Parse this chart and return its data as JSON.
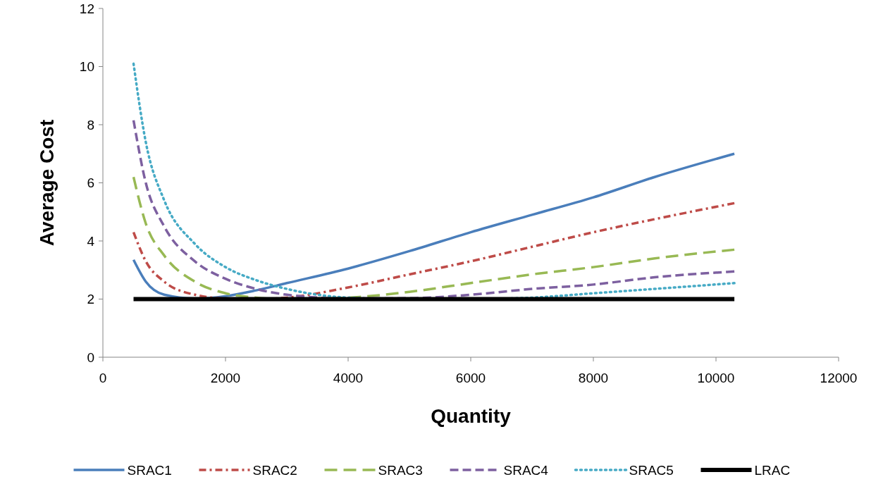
{
  "chart_data": {
    "type": "line",
    "xlabel": "Quantity",
    "ylabel": "Average Cost",
    "xlim": [
      0,
      12000
    ],
    "xticks": [
      0,
      2000,
      4000,
      6000,
      8000,
      10000,
      12000
    ],
    "ylim": [
      0,
      12
    ],
    "yticks": [
      0,
      2,
      4,
      6,
      8,
      10,
      12
    ],
    "legend": "bottom",
    "marker": "none",
    "series": [
      {
        "name": "SRAC1",
        "color": "#4a7ebb",
        "line_style": "solid",
        "x": [
          500,
          700,
          1000,
          1500,
          2000,
          2500,
          3000,
          4000,
          5000,
          6000,
          7000,
          8000,
          9000,
          10300
        ],
        "values": [
          3.35,
          2.6,
          2.15,
          2.02,
          2.1,
          2.3,
          2.55,
          3.05,
          3.65,
          4.3,
          4.9,
          5.5,
          6.2,
          7.0
        ]
      },
      {
        "name": "SRAC2",
        "color": "#be4b48",
        "line_style": "dashdot",
        "x": [
          500,
          700,
          1000,
          1500,
          2000,
          2500,
          3000,
          4000,
          5000,
          6000,
          7000,
          8000,
          9000,
          10300
        ],
        "values": [
          4.3,
          3.3,
          2.6,
          2.15,
          2.02,
          2.0,
          2.05,
          2.4,
          2.85,
          3.3,
          3.8,
          4.3,
          4.75,
          5.3
        ]
      },
      {
        "name": "SRAC3",
        "color": "#98b954",
        "line_style": "longdash",
        "x": [
          500,
          700,
          1000,
          1500,
          2000,
          2500,
          3000,
          4000,
          5000,
          6000,
          7000,
          8000,
          9000,
          10300
        ],
        "values": [
          6.2,
          4.6,
          3.5,
          2.6,
          2.2,
          2.05,
          2.0,
          2.05,
          2.25,
          2.55,
          2.85,
          3.1,
          3.4,
          3.7
        ]
      },
      {
        "name": "SRAC4",
        "color": "#7d60a0",
        "line_style": "dashed",
        "x": [
          500,
          700,
          1000,
          1500,
          2000,
          2500,
          3000,
          4000,
          5000,
          6000,
          7000,
          8000,
          9000,
          10300
        ],
        "values": [
          8.15,
          6.0,
          4.5,
          3.3,
          2.7,
          2.35,
          2.15,
          2.02,
          2.03,
          2.15,
          2.35,
          2.5,
          2.75,
          2.95
        ]
      },
      {
        "name": "SRAC5",
        "color": "#46aac5",
        "line_style": "dotted",
        "x": [
          500,
          700,
          1000,
          1500,
          2000,
          2500,
          3000,
          3500,
          4000,
          5000,
          6000,
          7000,
          8000,
          9000,
          10300
        ],
        "values": [
          10.1,
          7.4,
          5.4,
          3.9,
          3.1,
          2.65,
          2.35,
          2.15,
          2.05,
          2.0,
          2.0,
          2.05,
          2.2,
          2.35,
          2.55
        ]
      },
      {
        "name": "LRAC",
        "color": "#000000",
        "line_style": "solid",
        "x": [
          500,
          10300
        ],
        "values": [
          2,
          2
        ]
      }
    ]
  }
}
